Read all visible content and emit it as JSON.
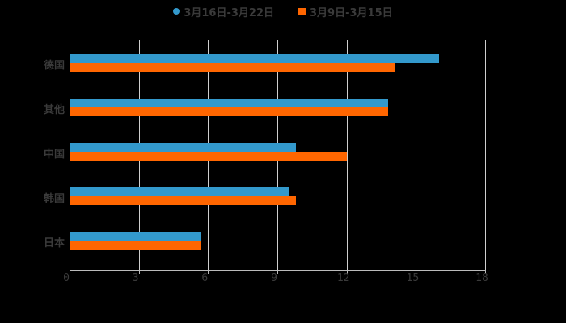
{
  "colors": {
    "series1": "#3399cc",
    "series2": "#ff6600",
    "background": "#000000",
    "text": "#3a3a3a",
    "grid": "#cfcfcf"
  },
  "legend": {
    "items": [
      {
        "label": "3月16日-3月22日",
        "marker": "circle",
        "color": "#3399cc"
      },
      {
        "label": "3月9日-3月15日",
        "marker": "square",
        "color": "#ff6600"
      }
    ]
  },
  "chart_data": {
    "type": "bar",
    "orientation": "horizontal",
    "title": "",
    "xlabel": "",
    "ylabel": "",
    "categories": [
      "德国",
      "其他",
      "中国",
      "韩国",
      "日本"
    ],
    "series": [
      {
        "name": "3月16日-3月22日",
        "color": "#3399cc",
        "values": [
          16.0,
          13.8,
          9.8,
          9.5,
          5.7
        ]
      },
      {
        "name": "3月9日-3月15日",
        "color": "#ff6600",
        "values": [
          14.1,
          13.8,
          12.0,
          9.8,
          5.7
        ]
      }
    ],
    "xlim": [
      0,
      18
    ],
    "xticks": [
      "0",
      "3",
      "6",
      "9",
      "12",
      "15",
      "18"
    ],
    "grid": true,
    "legend_position": "top"
  }
}
